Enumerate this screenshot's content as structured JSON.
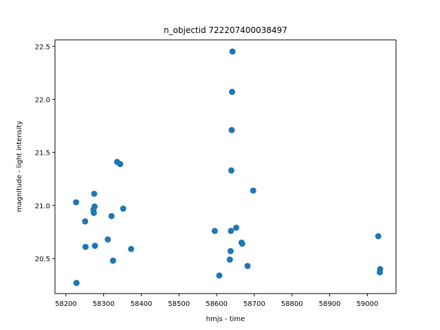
{
  "chart_data": {
    "type": "scatter",
    "title": "n_objectid 722207400038497",
    "xlabel": "hmjs - time",
    "ylabel": "magnitude - light intensity",
    "xlim": [
      58171,
      59076
    ],
    "ylim": [
      20.17,
      22.56
    ],
    "xticks": [
      58200,
      58300,
      58400,
      58500,
      58600,
      58700,
      58800,
      58900,
      59000
    ],
    "yticks": [
      20.5,
      21.0,
      21.5,
      22.0,
      22.5
    ],
    "ytick_labels": [
      "20.5",
      "21.0",
      "21.5",
      "22.0",
      "22.5"
    ],
    "grid": false,
    "legend": "none",
    "marker_color": "#1f77b4",
    "points": [
      {
        "x": 58227,
        "y": 21.03
      },
      {
        "x": 58228,
        "y": 20.27
      },
      {
        "x": 58251,
        "y": 20.85
      },
      {
        "x": 58252,
        "y": 20.61
      },
      {
        "x": 58273,
        "y": 20.96
      },
      {
        "x": 58274,
        "y": 20.93
      },
      {
        "x": 58275,
        "y": 21.11
      },
      {
        "x": 58276,
        "y": 20.99
      },
      {
        "x": 58277,
        "y": 20.62
      },
      {
        "x": 58311,
        "y": 20.68
      },
      {
        "x": 58321,
        "y": 20.9
      },
      {
        "x": 58325,
        "y": 20.48
      },
      {
        "x": 58336,
        "y": 21.41
      },
      {
        "x": 58344,
        "y": 21.39
      },
      {
        "x": 58352,
        "y": 20.97
      },
      {
        "x": 58373,
        "y": 20.59
      },
      {
        "x": 58595,
        "y": 20.76
      },
      {
        "x": 58607,
        "y": 20.34
      },
      {
        "x": 58635,
        "y": 20.49
      },
      {
        "x": 58637,
        "y": 20.57
      },
      {
        "x": 58638,
        "y": 20.76
      },
      {
        "x": 58639,
        "y": 21.33
      },
      {
        "x": 58640,
        "y": 21.71
      },
      {
        "x": 58641,
        "y": 22.07
      },
      {
        "x": 58642,
        "y": 22.45
      },
      {
        "x": 58652,
        "y": 20.79
      },
      {
        "x": 58666,
        "y": 20.65
      },
      {
        "x": 58668,
        "y": 20.64
      },
      {
        "x": 58682,
        "y": 20.43
      },
      {
        "x": 58697,
        "y": 21.14
      },
      {
        "x": 59029,
        "y": 20.71
      },
      {
        "x": 59033,
        "y": 20.37
      },
      {
        "x": 59034,
        "y": 20.4
      }
    ]
  }
}
